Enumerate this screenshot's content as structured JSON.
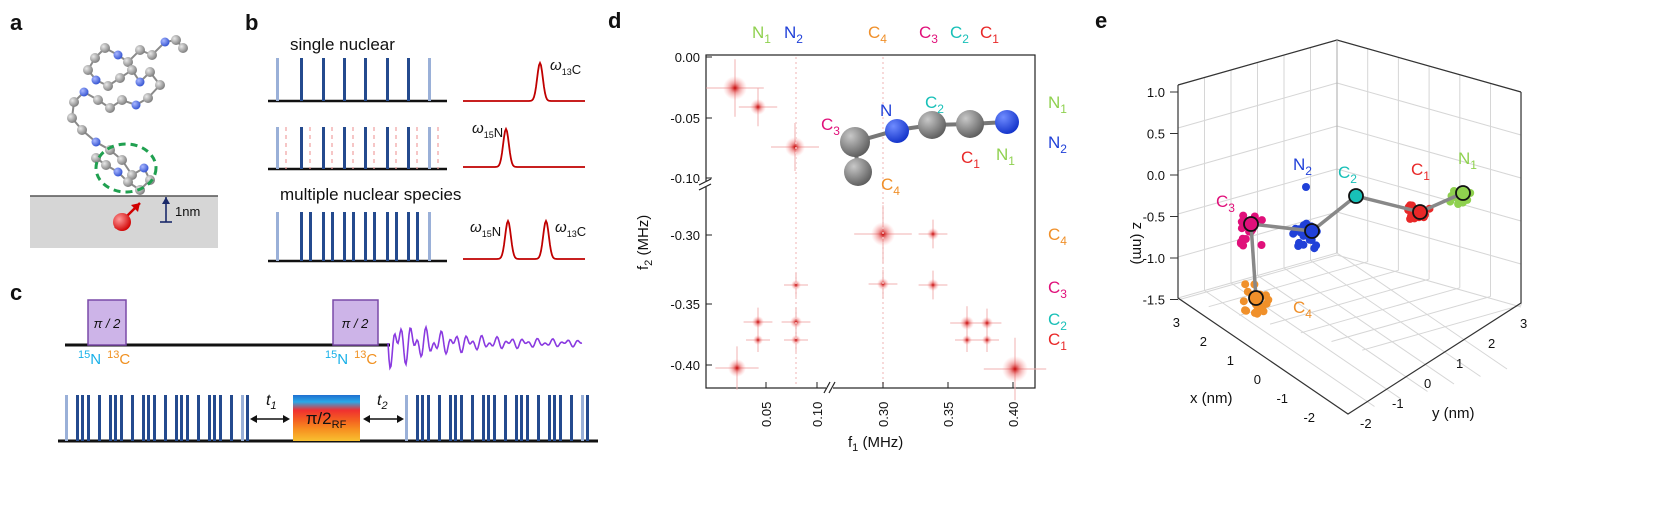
{
  "panels": {
    "a": {
      "label": "a",
      "scale": "1nm"
    },
    "b": {
      "label": "b",
      "rows": [
        {
          "title": "single nuclear",
          "peaks": [
            {
              "omega": "ω",
              "nucleus": "C",
              "mass": "13"
            }
          ]
        },
        {
          "title": "",
          "peaks": [
            {
              "omega": "ω",
              "nucleus": "N",
              "mass": "15"
            }
          ]
        },
        {
          "title": "multiple nuclear species",
          "peaks": [
            {
              "omega": "ω",
              "nucleus": "N",
              "mass": "15"
            },
            {
              "omega": "ω",
              "nucleus": "C",
              "mass": "13"
            }
          ]
        }
      ]
    },
    "c": {
      "label": "c",
      "pulse_label": "π / 2",
      "nuclei": [
        {
          "mass": "15",
          "sym": "N"
        },
        {
          "mass": "13",
          "sym": "C"
        }
      ],
      "t1": "t",
      "t1_sub": "1",
      "t2": "t",
      "t2_sub": "2",
      "rf_pulse": "π/2",
      "rf_sub": "RF"
    },
    "d": {
      "label": "d",
      "xlabel": "f",
      "xlabel_sub": "1",
      "xlabel_unit": " (MHz)",
      "ylabel": "f",
      "ylabel_sub": "2",
      "ylabel_unit": " (MHz)",
      "top_labels": [
        {
          "sym": "N",
          "sub": "1",
          "color": "#8fd14f"
        },
        {
          "sym": "N",
          "sub": "2",
          "color": "#2040d8"
        },
        {
          "sym": "C",
          "sub": "4",
          "color": "#f0902a"
        },
        {
          "sym": "C",
          "sub": "3",
          "color": "#e0107a"
        },
        {
          "sym": "C",
          "sub": "2",
          "color": "#18c0b8"
        },
        {
          "sym": "C",
          "sub": "1",
          "color": "#e82828"
        }
      ],
      "right_labels": [
        {
          "sym": "N",
          "sub": "1",
          "color": "#8fd14f"
        },
        {
          "sym": "N",
          "sub": "2",
          "color": "#2040d8"
        },
        {
          "sym": "C",
          "sub": "4",
          "color": "#f0902a"
        },
        {
          "sym": "C",
          "sub": "3",
          "color": "#e0107a"
        },
        {
          "sym": "C",
          "sub": "2",
          "color": "#18c0b8"
        },
        {
          "sym": "C",
          "sub": "1",
          "color": "#e82828"
        }
      ],
      "molecule_labels": [
        {
          "sym": "C",
          "sub": "3",
          "color": "#e0107a"
        },
        {
          "sym": "N",
          "sub": "",
          "color": "#2040d8"
        },
        {
          "sym": "C",
          "sub": "2",
          "color": "#18c0b8"
        },
        {
          "sym": "C",
          "sub": "1",
          "color": "#e82828"
        },
        {
          "sym": "N",
          "sub": "1",
          "color": "#8fd14f"
        },
        {
          "sym": "C",
          "sub": "4",
          "color": "#f0902a"
        }
      ],
      "x_ticks": [
        "0.05",
        "0.10",
        "0.30",
        "0.35",
        "0.40"
      ],
      "y_ticks": [
        "0.00",
        "-0.05",
        "-0.10",
        "-0.30",
        "-0.35",
        "-0.40"
      ]
    },
    "e": {
      "label": "e",
      "xlabel": "x (nm)",
      "ylabel": "y (nm)",
      "zlabel": "z (nm)",
      "z_ticks": [
        "1.0",
        "0.5",
        "0.0",
        "-0.5",
        "-1.0",
        "-1.5"
      ],
      "x_ticks": [
        "3",
        "2",
        "1",
        "0",
        "-1",
        "-2"
      ],
      "y_ticks": [
        "-2",
        "-1",
        "0",
        "1",
        "2",
        "3"
      ],
      "atom_labels": [
        {
          "sym": "N",
          "sub": "2",
          "color": "#2040d8"
        },
        {
          "sym": "C",
          "sub": "2",
          "color": "#18c0b8"
        },
        {
          "sym": "C",
          "sub": "1",
          "color": "#e82828"
        },
        {
          "sym": "N",
          "sub": "1",
          "color": "#8fd14f"
        },
        {
          "sym": "C",
          "sub": "3",
          "color": "#e0107a"
        },
        {
          "sym": "C",
          "sub": "4",
          "color": "#f0902a"
        }
      ]
    }
  }
}
